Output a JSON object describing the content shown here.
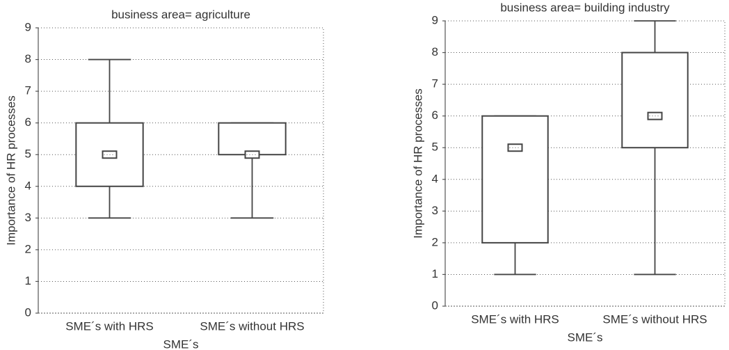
{
  "chart_data": [
    {
      "type": "box",
      "title": "business area= agriculture",
      "xlabel": "SME´s",
      "ylabel": "Importance of HR processes",
      "categories": [
        "SME´s with HRS",
        "SME´s without HRS"
      ],
      "values": [
        {
          "min": 3,
          "q1": 4,
          "median": 5,
          "q3": 6,
          "max": 8
        },
        {
          "min": 3,
          "q1": 5,
          "median": 5,
          "q3": 6,
          "max": 6
        }
      ],
      "ylim": [
        0,
        9
      ],
      "yticks": [
        0,
        1,
        2,
        3,
        4,
        5,
        6,
        7,
        8,
        9
      ],
      "grid": true
    },
    {
      "type": "box",
      "title": "business area= building industry",
      "xlabel": "SME´s",
      "ylabel": "Importance of HR processes",
      "categories": [
        "SME´s with HRS",
        "SME´s without HRS"
      ],
      "values": [
        {
          "min": 1,
          "q1": 2,
          "median": 5,
          "q3": 6,
          "max": 6
        },
        {
          "min": 1,
          "q1": 5,
          "median": 6,
          "q3": 8,
          "max": 9
        }
      ],
      "ylim": [
        0,
        9
      ],
      "yticks": [
        0,
        1,
        2,
        3,
        4,
        5,
        6,
        7,
        8,
        9
      ],
      "grid": true
    }
  ]
}
